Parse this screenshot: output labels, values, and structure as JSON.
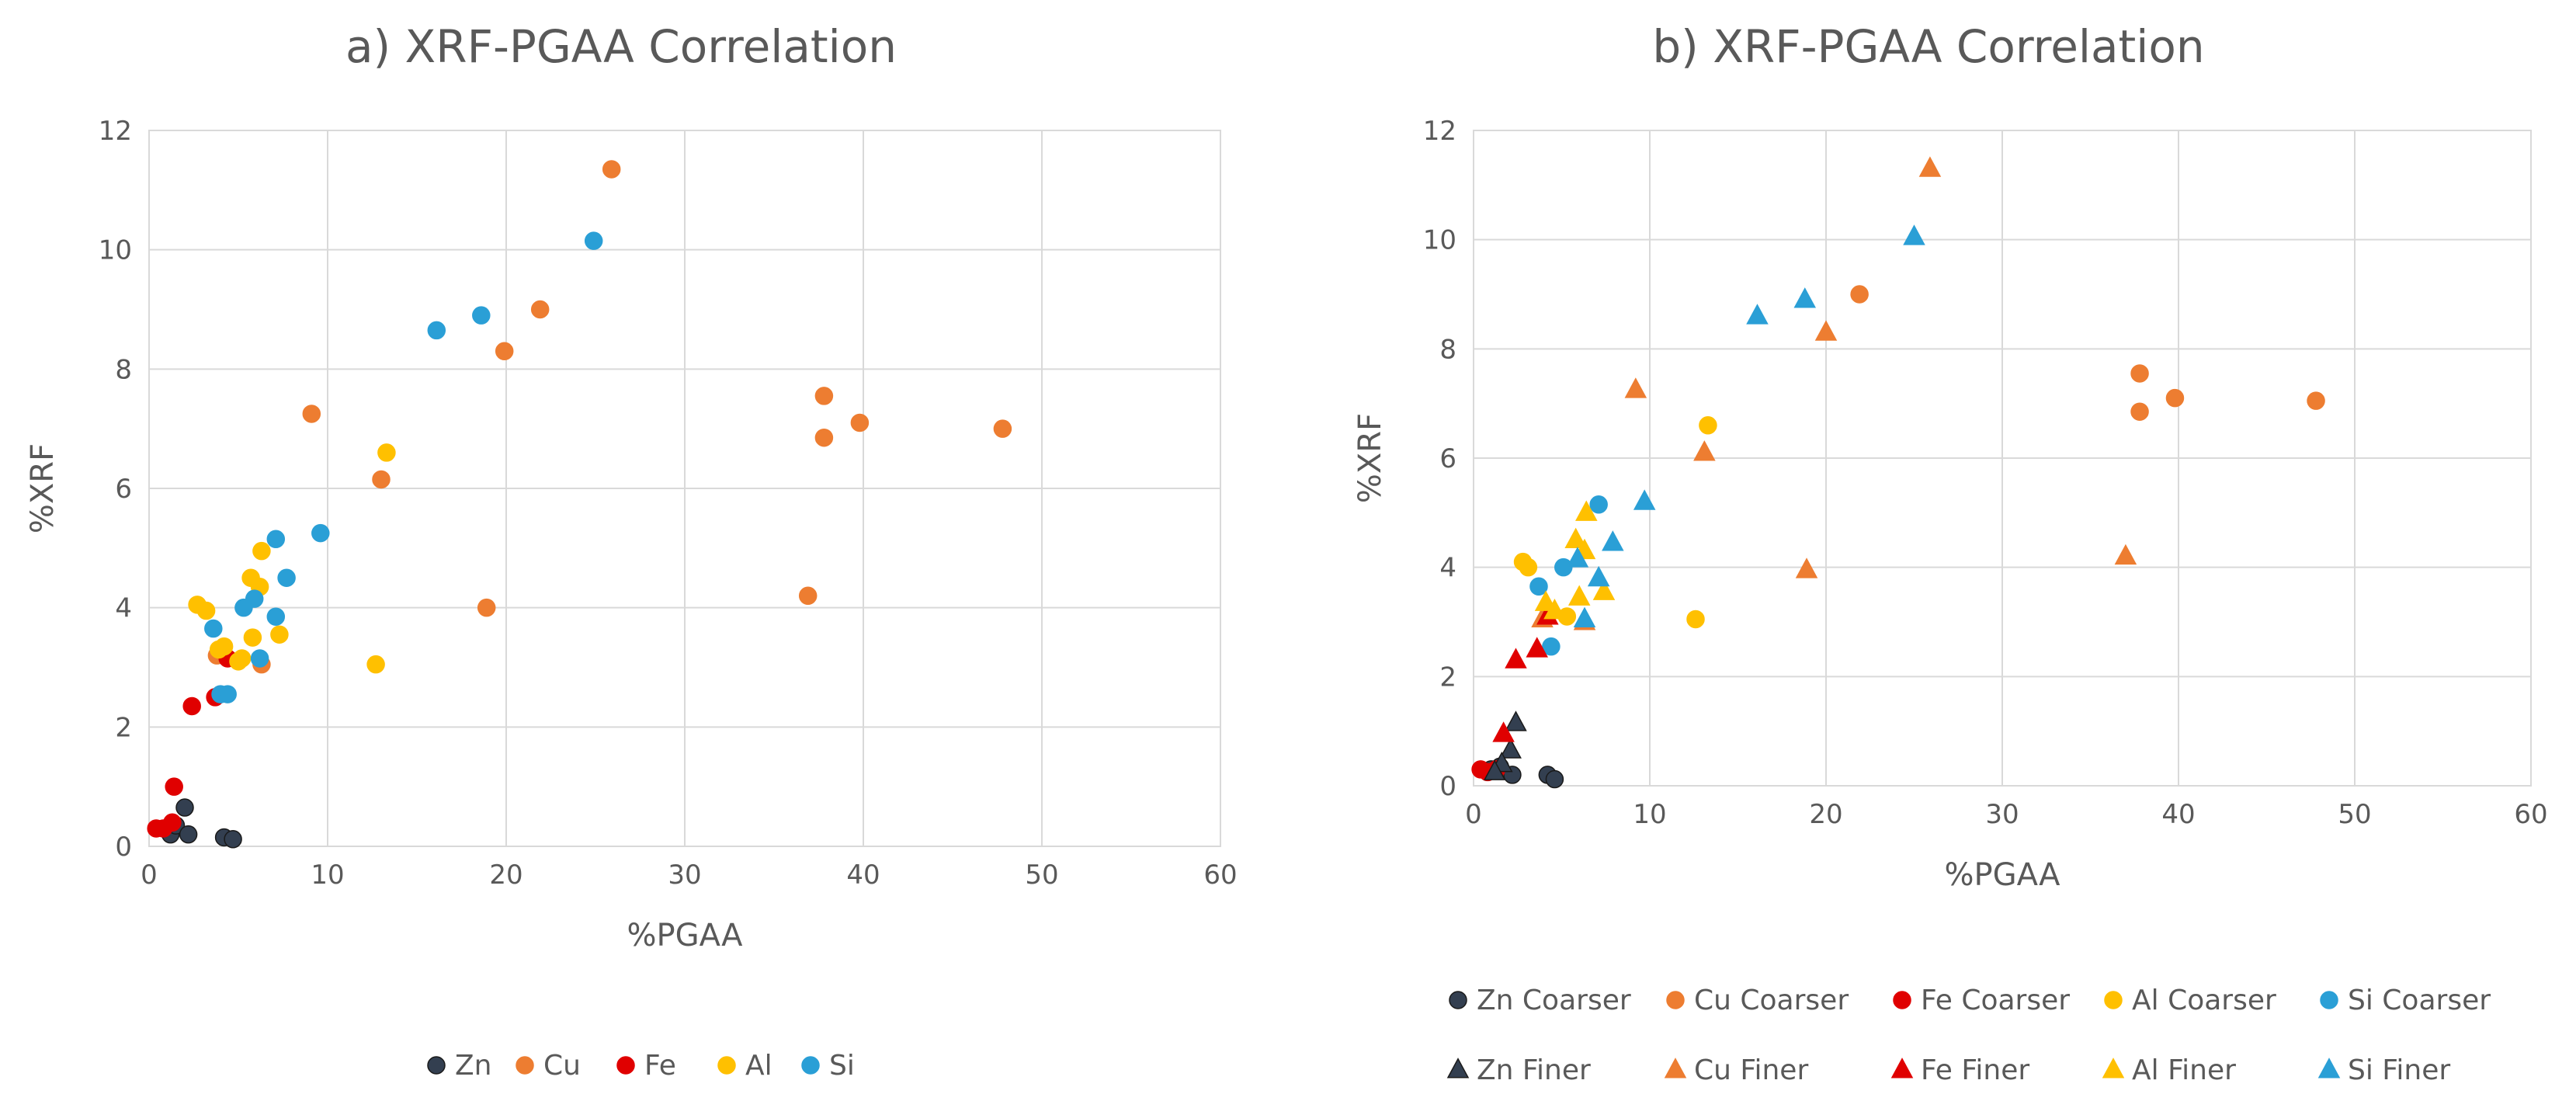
{
  "chart_data": [
    {
      "type": "scatter",
      "title": "a) XRF-PGAA Correlation",
      "xlabel": "%PGAA",
      "ylabel": "%XRF",
      "xlim": [
        0,
        60
      ],
      "ylim": [
        0,
        12
      ],
      "x_ticks": [
        "0",
        "10",
        "20",
        "30",
        "40",
        "50",
        "60"
      ],
      "y_ticks": [
        "0",
        "2",
        "4",
        "6",
        "8",
        "10",
        "12"
      ],
      "grid": true,
      "legend_position": "bottom",
      "series": [
        {
          "name": "Zn",
          "color": "#333f50",
          "marker": "circle",
          "points": [
            [
              1.0,
              0.3
            ],
            [
              1.2,
              0.2
            ],
            [
              1.5,
              0.35
            ],
            [
              2.0,
              0.65
            ],
            [
              2.2,
              0.2
            ],
            [
              4.2,
              0.15
            ],
            [
              4.7,
              0.12
            ]
          ]
        },
        {
          "name": "Cu",
          "color": "#ed7d31",
          "marker": "circle",
          "points": [
            [
              25.9,
              11.35
            ],
            [
              21.9,
              9.0
            ],
            [
              19.9,
              8.3
            ],
            [
              9.1,
              7.25
            ],
            [
              37.8,
              7.55
            ],
            [
              39.8,
              7.1
            ],
            [
              47.8,
              7.0
            ],
            [
              37.8,
              6.85
            ],
            [
              13.0,
              6.15
            ],
            [
              18.9,
              4.0
            ],
            [
              36.9,
              4.2
            ],
            [
              6.3,
              3.05
            ],
            [
              3.8,
              3.2
            ]
          ]
        },
        {
          "name": "Fe",
          "color": "#e00000",
          "marker": "circle",
          "points": [
            [
              0.4,
              0.3
            ],
            [
              0.8,
              0.3
            ],
            [
              1.3,
              0.4
            ],
            [
              1.4,
              1.0
            ],
            [
              2.4,
              2.35
            ],
            [
              3.7,
              2.5
            ],
            [
              4.4,
              3.15
            ]
          ]
        },
        {
          "name": "Al",
          "color": "#ffc000",
          "marker": "circle",
          "points": [
            [
              2.7,
              4.05
            ],
            [
              3.2,
              3.95
            ],
            [
              3.9,
              3.3
            ],
            [
              4.2,
              3.35
            ],
            [
              5.0,
              3.1
            ],
            [
              5.2,
              3.15
            ],
            [
              5.7,
              4.5
            ],
            [
              6.3,
              4.95
            ],
            [
              6.2,
              4.35
            ],
            [
              5.8,
              3.5
            ],
            [
              7.3,
              3.55
            ],
            [
              12.7,
              3.05
            ],
            [
              13.3,
              6.6
            ]
          ]
        },
        {
          "name": "Si",
          "color": "#2a9fd6",
          "marker": "circle",
          "points": [
            [
              24.9,
              10.15
            ],
            [
              18.6,
              8.9
            ],
            [
              16.1,
              8.65
            ],
            [
              9.6,
              5.25
            ],
            [
              7.1,
              5.15
            ],
            [
              7.7,
              4.5
            ],
            [
              5.9,
              4.15
            ],
            [
              5.3,
              4.0
            ],
            [
              7.1,
              3.85
            ],
            [
              3.6,
              3.65
            ],
            [
              6.2,
              3.15
            ],
            [
              4.0,
              2.55
            ],
            [
              4.4,
              2.55
            ]
          ]
        }
      ]
    },
    {
      "type": "scatter",
      "title": "b) XRF-PGAA Correlation",
      "xlabel": "%PGAA",
      "ylabel": "%XRF",
      "xlim": [
        0,
        60
      ],
      "ylim": [
        0,
        12
      ],
      "x_ticks": [
        "0",
        "10",
        "20",
        "30",
        "40",
        "50",
        "60"
      ],
      "y_ticks": [
        "0",
        "2",
        "4",
        "6",
        "8",
        "10",
        "12"
      ],
      "grid": true,
      "legend_position": "bottom",
      "series": [
        {
          "name": "Zn Coarser",
          "color": "#333f50",
          "marker": "circle",
          "points": [
            [
              1.0,
              0.3
            ],
            [
              1.5,
              0.35
            ],
            [
              2.2,
              0.2
            ],
            [
              4.2,
              0.2
            ],
            [
              4.6,
              0.12
            ]
          ]
        },
        {
          "name": "Cu Coarser",
          "color": "#ed7d31",
          "marker": "circle",
          "points": [
            [
              21.9,
              9.0
            ],
            [
              37.8,
              7.55
            ],
            [
              39.8,
              7.1
            ],
            [
              47.8,
              7.05
            ],
            [
              37.8,
              6.85
            ]
          ]
        },
        {
          "name": "Fe Coarser",
          "color": "#e00000",
          "marker": "circle",
          "points": [
            [
              0.4,
              0.3
            ],
            [
              0.8,
              0.25
            ],
            [
              1.3,
              0.3
            ]
          ]
        },
        {
          "name": "Al Coarser",
          "color": "#ffc000",
          "marker": "circle",
          "points": [
            [
              2.8,
              4.1
            ],
            [
              3.1,
              4.0
            ],
            [
              13.3,
              6.6
            ],
            [
              12.6,
              3.05
            ],
            [
              5.3,
              3.1
            ]
          ]
        },
        {
          "name": "Si Coarser",
          "color": "#2a9fd6",
          "marker": "circle",
          "points": [
            [
              7.1,
              5.15
            ],
            [
              5.1,
              4.0
            ],
            [
              3.7,
              3.65
            ],
            [
              4.4,
              2.55
            ]
          ]
        },
        {
          "name": "Zn Finer",
          "color": "#333f50",
          "marker": "triangle",
          "points": [
            [
              2.4,
              1.15
            ],
            [
              2.1,
              0.65
            ],
            [
              1.6,
              0.4
            ],
            [
              1.2,
              0.25
            ]
          ]
        },
        {
          "name": "Cu Finer",
          "color": "#ed7d31",
          "marker": "triangle",
          "points": [
            [
              25.9,
              11.3
            ],
            [
              20.0,
              8.3
            ],
            [
              9.2,
              7.25
            ],
            [
              13.1,
              6.1
            ],
            [
              18.9,
              3.95
            ],
            [
              37.0,
              4.2
            ],
            [
              6.3,
              3.0
            ],
            [
              3.9,
              3.05
            ]
          ]
        },
        {
          "name": "Fe Finer",
          "color": "#e00000",
          "marker": "triangle",
          "points": [
            [
              1.7,
              0.95
            ],
            [
              2.4,
              2.3
            ],
            [
              3.6,
              2.5
            ],
            [
              4.2,
              3.1
            ]
          ]
        },
        {
          "name": "Al Finer",
          "color": "#ffc000",
          "marker": "triangle",
          "points": [
            [
              6.4,
              5.0
            ],
            [
              5.8,
              4.5
            ],
            [
              6.3,
              4.3
            ],
            [
              6.0,
              3.45
            ],
            [
              7.4,
              3.55
            ],
            [
              4.1,
              3.35
            ],
            [
              4.6,
              3.2
            ]
          ]
        },
        {
          "name": "Si Finer",
          "color": "#2a9fd6",
          "marker": "triangle",
          "points": [
            [
              25.0,
              10.05
            ],
            [
              18.8,
              8.9
            ],
            [
              16.1,
              8.6
            ],
            [
              9.7,
              5.2
            ],
            [
              7.9,
              4.45
            ],
            [
              5.9,
              4.15
            ],
            [
              7.1,
              3.8
            ],
            [
              6.3,
              3.05
            ]
          ]
        }
      ]
    }
  ]
}
